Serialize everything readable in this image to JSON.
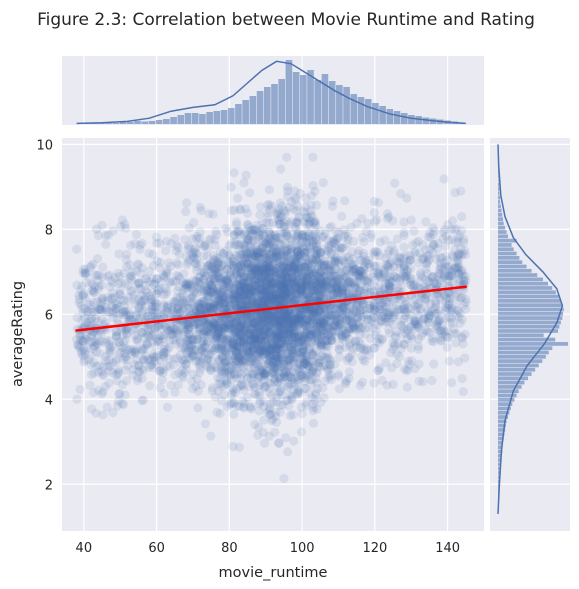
{
  "chart_data": {
    "type": "scatter",
    "title": "Figure 2.3: Correlation between Movie Runtime and Rating",
    "xlabel": "movie_runtime",
    "ylabel": "averageRating",
    "xlim": [
      34,
      150
    ],
    "ylim": [
      0.9,
      10.15
    ],
    "x_ticks": [
      "40",
      "60",
      "80",
      "100",
      "120",
      "140"
    ],
    "y_ticks": [
      "2",
      "4",
      "6",
      "8",
      "10"
    ],
    "grid": true,
    "legend": "none",
    "colors": {
      "points": "#4c72b0",
      "regression": "#ff0000",
      "background": "#eaeaf2",
      "grid": "#ffffff"
    },
    "regression_line": {
      "x": [
        38,
        145
      ],
      "y": [
        5.62,
        6.65
      ]
    },
    "x_marginal": {
      "type": "histogram",
      "x_range": [
        38,
        145
      ],
      "bin_counts": [
        1,
        1,
        1,
        2,
        2,
        2,
        4,
        4,
        6,
        5,
        6,
        8,
        10,
        14,
        18,
        22,
        22,
        20,
        24,
        26,
        28,
        32,
        40,
        48,
        56,
        66,
        74,
        80,
        90,
        128,
        104,
        98,
        108,
        88,
        100,
        86,
        78,
        74,
        60,
        54,
        50,
        42,
        36,
        30,
        26,
        22,
        18,
        16,
        13,
        11,
        9,
        7,
        5,
        3
      ],
      "kde": [
        [
          38,
          1
        ],
        [
          45,
          2
        ],
        [
          52,
          4
        ],
        [
          58,
          9
        ],
        [
          64,
          20
        ],
        [
          70,
          26
        ],
        [
          76,
          30
        ],
        [
          81,
          44
        ],
        [
          85,
          64
        ],
        [
          89,
          84
        ],
        [
          93,
          98
        ],
        [
          97,
          94
        ],
        [
          101,
          80
        ],
        [
          105,
          66
        ],
        [
          109,
          52
        ],
        [
          113,
          40
        ],
        [
          118,
          27
        ],
        [
          124,
          16
        ],
        [
          130,
          9
        ],
        [
          136,
          5
        ],
        [
          140,
          3
        ],
        [
          145,
          1
        ]
      ]
    },
    "y_marginal": {
      "type": "histogram",
      "y_range": [
        1.5,
        9.6
      ],
      "bin_counts": [
        1,
        1,
        1,
        1,
        2,
        2,
        2,
        3,
        3,
        4,
        4,
        5,
        6,
        6,
        7,
        8,
        9,
        10,
        11,
        12,
        14,
        16,
        18,
        20,
        23,
        26,
        29,
        33,
        37,
        42,
        47,
        52,
        57,
        62,
        67,
        71,
        76,
        98,
        80,
        64,
        84,
        86,
        88,
        90,
        91,
        92,
        90,
        88,
        85,
        81,
        76,
        70,
        63,
        55,
        47,
        40,
        34,
        30,
        26,
        22,
        19,
        26,
        14,
        12,
        10,
        8,
        7,
        6,
        5,
        4,
        3,
        3,
        2,
        2,
        2,
        1,
        1,
        1,
        1,
        1
      ],
      "kde": [
        [
          1.3,
          0
        ],
        [
          2.0,
          2
        ],
        [
          2.8,
          5
        ],
        [
          3.5,
          10
        ],
        [
          4.2,
          22
        ],
        [
          4.8,
          42
        ],
        [
          5.3,
          66
        ],
        [
          5.8,
          84
        ],
        [
          6.2,
          92
        ],
        [
          6.6,
          84
        ],
        [
          7.0,
          64
        ],
        [
          7.4,
          40
        ],
        [
          7.8,
          22
        ],
        [
          8.3,
          10
        ],
        [
          8.8,
          4
        ],
        [
          9.5,
          1
        ],
        [
          10.0,
          0
        ]
      ]
    },
    "scatter_distribution": {
      "n_points": 5200,
      "x_mode": 92,
      "x_range": [
        38,
        145
      ],
      "y_mean": 6.1,
      "y_range": [
        1.2,
        9.7
      ],
      "point_opacity": 0.13
    }
  }
}
